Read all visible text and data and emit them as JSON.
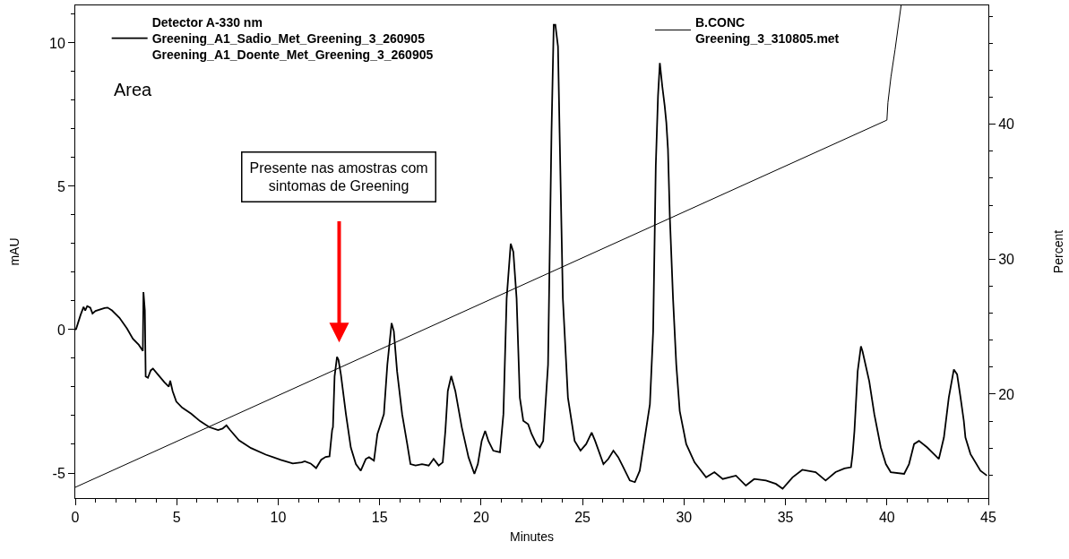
{
  "chart_data": {
    "type": "line",
    "xlabel": "Minutes",
    "ylabel": "mAU",
    "y2label": "Percent",
    "xlim": [
      0,
      45
    ],
    "xticks": [
      0,
      {
        "value": 1,
        "label": null
      },
      {
        "value": 2,
        "label": null
      },
      {
        "value": 3,
        "label": null
      },
      {
        "value": 4,
        "label": null
      },
      5,
      {
        "value": 6,
        "label": null
      },
      {
        "value": 7,
        "label": null
      },
      {
        "value": 8,
        "label": null
      },
      {
        "value": 9,
        "label": null
      },
      10,
      {
        "value": 11,
        "label": null
      },
      {
        "value": 12,
        "label": null
      },
      {
        "value": 13,
        "label": null
      },
      {
        "value": 14,
        "label": null
      },
      15,
      {
        "value": 16,
        "label": null
      },
      {
        "value": 17,
        "label": null
      },
      {
        "value": 18,
        "label": null
      },
      {
        "value": 19,
        "label": null
      },
      20,
      {
        "value": 21,
        "label": null
      },
      {
        "value": 22,
        "label": null
      },
      {
        "value": 23,
        "label": null
      },
      {
        "value": 24,
        "label": null
      },
      25,
      {
        "value": 26,
        "label": null
      },
      {
        "value": 27,
        "label": null
      },
      {
        "value": 28,
        "label": null
      },
      {
        "value": 29,
        "label": null
      },
      30,
      {
        "value": 31,
        "label": null
      },
      {
        "value": 32,
        "label": null
      },
      {
        "value": 33,
        "label": null
      },
      {
        "value": 34,
        "label": null
      },
      35,
      {
        "value": 36,
        "label": null
      },
      {
        "value": 37,
        "label": null
      },
      {
        "value": 38,
        "label": null
      },
      {
        "value": 39,
        "label": null
      },
      40,
      {
        "value": 41,
        "label": null
      },
      {
        "value": 42,
        "label": null
      },
      {
        "value": 43,
        "label": null
      },
      {
        "value": 44,
        "label": null
      },
      45
    ],
    "ylim": [
      -5.875,
      11.31
    ],
    "yticks": [
      {
        "value": -5,
        "label": "-5"
      },
      {
        "value": -4,
        "label": null
      },
      {
        "value": -3,
        "label": null
      },
      {
        "value": -2,
        "label": null
      },
      {
        "value": -1,
        "label": null
      },
      0,
      {
        "value": 1,
        "label": null
      },
      {
        "value": 2,
        "label": null
      },
      {
        "value": 3,
        "label": null
      },
      {
        "value": 4,
        "label": null
      },
      5,
      {
        "value": 6,
        "label": null
      },
      {
        "value": 7,
        "label": null
      },
      {
        "value": 8,
        "label": null
      },
      {
        "value": 9,
        "label": null
      },
      10,
      {
        "value": 11,
        "label": null
      }
    ],
    "y2lim": [
      12.3,
      48.8
    ],
    "y2ticks": [
      {
        "value": 14,
        "label": null
      },
      {
        "value": 16,
        "label": null
      },
      {
        "value": 18,
        "label": null
      },
      20,
      {
        "value": 22,
        "label": null
      },
      {
        "value": 24,
        "label": null
      },
      {
        "value": 26,
        "label": null
      },
      {
        "value": 28,
        "label": null
      },
      30,
      {
        "value": 32,
        "label": null
      },
      {
        "value": 34,
        "label": null
      },
      {
        "value": 36,
        "label": null
      },
      {
        "value": 38,
        "label": null
      },
      40,
      {
        "value": 42,
        "label": null
      },
      {
        "value": 44,
        "label": null
      },
      {
        "value": 46,
        "label": null
      },
      {
        "value": 48,
        "label": null
      }
    ],
    "legend": "top",
    "marker": "none",
    "line_style": "solid",
    "annotations": [
      "Area",
      "Presente nas amostras com\nsintomas de Greening"
    ],
    "series": [
      {
        "name": "Detector A-330 nm\nGreening_A1_Sadio_Met_Greening_3_260905\nGreening_A1_Doente_Met_Greening_3_260905",
        "color": "#000000",
        "x": [
          0,
          0.04,
          0.26,
          0.41,
          0.49,
          0.59,
          0.74,
          0.85,
          1.0,
          1.44,
          1.59,
          1.81,
          2.18,
          2.55,
          2.84,
          3.13,
          3.33,
          3.36,
          3.43,
          3.47,
          3.58,
          3.72,
          3.83,
          4.02,
          4.39,
          4.61,
          4.68,
          4.8,
          4.98,
          5.27,
          5.71,
          6.15,
          6.6,
          7.04,
          7.26,
          7.45,
          7.63,
          8.07,
          8.66,
          9.39,
          10.13,
          10.72,
          11.16,
          11.31,
          11.6,
          11.87,
          12.12,
          12.34,
          12.53,
          12.57,
          12.66,
          12.7,
          12.78,
          12.9,
          12.97,
          13.09,
          13.34,
          13.58,
          13.83,
          14.07,
          14.32,
          14.48,
          14.72,
          14.89,
          15.05,
          15.21,
          15.38,
          15.59,
          15.7,
          15.86,
          16.11,
          16.36,
          16.52,
          16.77,
          17.09,
          17.42,
          17.66,
          17.91,
          18.11,
          18.24,
          18.36,
          18.53,
          18.73,
          19.05,
          19.38,
          19.67,
          19.84,
          20.03,
          20.2,
          20.36,
          20.6,
          20.93,
          21.1,
          21.26,
          21.46,
          21.59,
          21.75,
          21.91,
          22.08,
          22.32,
          22.49,
          22.73,
          22.89,
          23.06,
          23.3,
          23.47,
          23.58,
          23.66,
          23.79,
          23.87,
          24.03,
          24.28,
          24.61,
          24.9,
          25.18,
          25.45,
          25.62,
          26.03,
          26.27,
          26.52,
          26.76,
          27.01,
          27.33,
          27.58,
          27.82,
          28.07,
          28.32,
          28.48,
          28.61,
          28.72,
          28.81,
          28.93,
          29.05,
          29.13,
          29.21,
          29.3,
          29.46,
          29.62,
          29.79,
          30.11,
          30.52,
          31.09,
          31.5,
          31.91,
          32.56,
          33.05,
          33.46,
          34.04,
          34.53,
          34.86,
          35.35,
          35.83,
          36.49,
          36.98,
          37.47,
          37.91,
          38.23,
          38.31,
          38.4,
          38.56,
          38.72,
          38.8,
          39.13,
          39.38,
          39.7,
          39.95,
          40.19,
          40.85,
          41.09,
          41.34,
          41.58,
          41.99,
          42.56,
          42.81,
          43.05,
          43.3,
          43.46,
          43.63,
          43.79,
          43.87,
          44.12,
          44.61,
          44.93
        ],
        "values": [
          0,
          0.02,
          0.51,
          0.79,
          0.67,
          0.82,
          0.77,
          0.56,
          0.65,
          0.75,
          0.77,
          0.67,
          0.41,
          0.04,
          -0.32,
          -0.53,
          -0.74,
          1.31,
          0.67,
          -1.63,
          -1.68,
          -1.42,
          -1.36,
          -1.52,
          -1.83,
          -1.99,
          -1.78,
          -2.15,
          -2.51,
          -2.72,
          -2.93,
          -3.19,
          -3.4,
          -3.5,
          -3.45,
          -3.34,
          -3.5,
          -3.86,
          -4.13,
          -4.36,
          -4.54,
          -4.67,
          -4.63,
          -4.59,
          -4.67,
          -4.83,
          -4.54,
          -4.44,
          -4.42,
          -4.13,
          -3.5,
          -3.4,
          -1.63,
          -0.95,
          -1.05,
          -1.56,
          -2.95,
          -4.11,
          -4.69,
          -4.92,
          -4.51,
          -4.45,
          -4.57,
          -3.64,
          -3.3,
          -2.95,
          -1.22,
          0.23,
          -0.06,
          -1.45,
          -2.95,
          -3.99,
          -4.69,
          -4.74,
          -4.69,
          -4.74,
          -4.51,
          -4.74,
          -4.63,
          -3.53,
          -2.14,
          -1.62,
          -2.14,
          -3.41,
          -4.45,
          -5.03,
          -4.69,
          -3.88,
          -3.53,
          -3.88,
          -4.22,
          -4.28,
          -2.95,
          1.09,
          3.0,
          2.71,
          1.09,
          -2.37,
          -3.18,
          -3.3,
          -3.64,
          -3.99,
          -4.11,
          -3.88,
          -1.22,
          6.87,
          10.63,
          10.63,
          9.88,
          6.87,
          1.09,
          -2.37,
          -3.88,
          -4.22,
          -3.99,
          -3.59,
          -3.88,
          -4.69,
          -4.51,
          -4.22,
          -4.45,
          -4.8,
          -5.26,
          -5.32,
          -4.92,
          -3.76,
          -2.61,
          -0.06,
          5.72,
          8.15,
          9.3,
          8.49,
          7.8,
          7.22,
          6.3,
          3.98,
          1.09,
          -1.22,
          -2.84,
          -3.99,
          -4.63,
          -5.15,
          -4.97,
          -5.21,
          -5.09,
          -5.44,
          -5.21,
          -5.26,
          -5.38,
          -5.55,
          -5.15,
          -4.89,
          -4.97,
          -5.26,
          -4.97,
          -4.84,
          -4.8,
          -4.34,
          -3.53,
          -1.45,
          -0.58,
          -0.76,
          -1.8,
          -2.95,
          -4.11,
          -4.69,
          -4.97,
          -5.03,
          -4.69,
          -3.99,
          -3.88,
          -4.11,
          -4.51,
          -3.76,
          -2.37,
          -1.39,
          -1.56,
          -2.37,
          -3.18,
          -3.76,
          -4.34,
          -4.92,
          -5.09
        ]
      },
      {
        "name": "B.CONC\nGreening_3_310805.met",
        "color": "#000000",
        "axis": "y2",
        "x": [
          0,
          40.0,
          40.05,
          40.2,
          40.4,
          40.7
        ],
        "values": [
          13.1,
          40.3,
          41.6,
          43.5,
          45.5,
          48.8
        ]
      }
    ]
  }
}
